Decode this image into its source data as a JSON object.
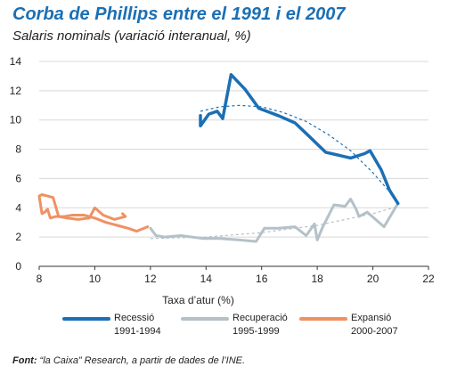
{
  "header": {
    "title": "Corba de Phillips entre el 1991 i el 2007",
    "subtitle": "Salaris nominals (variació interanual, %)"
  },
  "footer": {
    "source_label": "Font:",
    "source_text": " “la Caixa” Research, a partir de dades de l’INE."
  },
  "colors": {
    "recessio": "#1b6fb5",
    "recuperacio": "#b4c1c8",
    "expansio": "#ef9163",
    "grid": "#d8d8d8",
    "title": "#1b6fb5"
  },
  "chart_data": {
    "type": "line",
    "title": "Corba de Phillips entre el 1991 i el 2007",
    "subtitle": "Salaris nominals (variació interanual, %)",
    "xlabel": "Taxa d’atur (%)",
    "ylabel": "",
    "xlim": [
      8,
      22
    ],
    "ylim": [
      0,
      14
    ],
    "xticks": [
      8,
      10,
      12,
      14,
      16,
      18,
      20,
      22
    ],
    "yticks": [
      0,
      2,
      4,
      6,
      8,
      10,
      12,
      14
    ],
    "grid": "horizontal",
    "legend_position": "bottom",
    "series": [
      {
        "name": "Recessió",
        "name_line2": "1991-1994",
        "color_key": "recessio",
        "x": [
          13.8,
          13.8,
          14.1,
          14.4,
          14.6,
          14.9,
          15.4,
          15.9,
          16.6,
          17.2,
          17.7,
          18.3,
          19.2,
          19.7,
          19.9,
          20.3,
          20.6,
          20.9
        ],
        "y": [
          10.3,
          9.6,
          10.4,
          10.6,
          10.1,
          13.1,
          12.1,
          10.8,
          10.3,
          9.8,
          8.9,
          7.8,
          7.4,
          7.7,
          7.9,
          6.6,
          5.2,
          4.3
        ],
        "trend": {
          "x": [
            13.8,
            14.5,
            15.2,
            16.0,
            16.8,
            17.6,
            18.4,
            19.2,
            20.0,
            20.6,
            20.9
          ],
          "y": [
            10.6,
            10.9,
            11.0,
            10.9,
            10.5,
            9.9,
            9.0,
            7.9,
            6.4,
            5.1,
            4.4
          ]
        }
      },
      {
        "name": "Recuperació",
        "name_line2": "1995-1999",
        "color_key": "recuperacio",
        "x": [
          20.9,
          20.4,
          19.8,
          19.5,
          19.4,
          19.2,
          19.0,
          18.6,
          18.2,
          18.0,
          17.9,
          17.6,
          17.2,
          16.6,
          16.1,
          15.8,
          15.2,
          14.5,
          13.9,
          13.1,
          12.5,
          12.2,
          12.0
        ],
        "y": [
          4.3,
          2.7,
          3.7,
          3.4,
          3.9,
          4.6,
          4.1,
          4.2,
          2.7,
          1.8,
          2.9,
          2.1,
          2.7,
          2.6,
          2.6,
          1.7,
          1.8,
          1.9,
          1.9,
          2.1,
          2.0,
          2.1,
          2.6
        ],
        "trend": {
          "x": [
            12.0,
            14.0,
            16.0,
            18.0,
            20.0,
            20.9
          ],
          "y": [
            1.9,
            2.0,
            2.3,
            2.8,
            3.6,
            4.1
          ]
        }
      },
      {
        "name": "Expansió",
        "name_line2": "2000-2007",
        "color_key": "expansio",
        "x": [
          11.9,
          11.5,
          11.2,
          10.8,
          10.4,
          10.0,
          9.6,
          9.2,
          8.9,
          8.6,
          8.4,
          8.3,
          8.2,
          8.1,
          8.0,
          8.1,
          8.3,
          8.5,
          8.7,
          9.0,
          9.4,
          9.8,
          10.0,
          10.3,
          10.7,
          11.1,
          11.0
        ],
        "y": [
          2.7,
          2.4,
          2.6,
          2.8,
          3.0,
          3.3,
          3.5,
          3.5,
          3.4,
          3.4,
          3.3,
          3.9,
          3.7,
          3.6,
          4.8,
          4.9,
          4.8,
          4.7,
          3.4,
          3.3,
          3.2,
          3.3,
          4.0,
          3.5,
          3.2,
          3.4,
          3.6
        ]
      }
    ]
  }
}
